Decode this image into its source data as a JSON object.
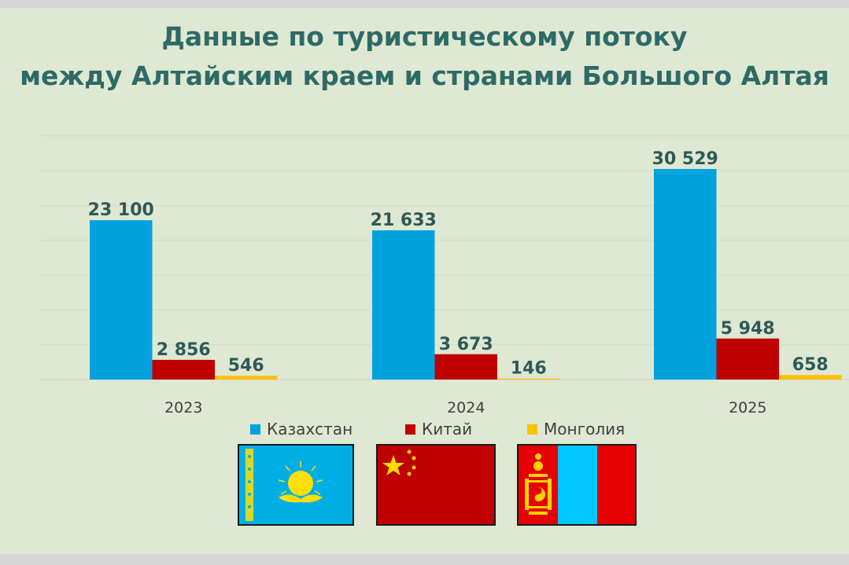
{
  "title": {
    "line1": "Данные по туристическому потоку",
    "line2": "между Алтайским краем и странами Большого Алтая"
  },
  "colors": {
    "title": "#2e6a66",
    "background": "#dfe8d2",
    "kazakhstan": "#00a2dd",
    "china": "#c00000",
    "mongolia": "#ffc000",
    "data_label": "#2e5a58"
  },
  "flags": [
    "kazakhstan-flag-icon",
    "china-flag-icon",
    "mongolia-flag-icon"
  ],
  "chart_data": {
    "type": "bar",
    "categories": [
      "2023",
      "2024",
      "2025"
    ],
    "series": [
      {
        "name": "Казахстан",
        "values": [
          23100,
          21633,
          30529
        ],
        "labels": [
          "23 100",
          "21 633",
          "30 529"
        ],
        "color": "#00a2dd"
      },
      {
        "name": "Китай",
        "values": [
          2856,
          3673,
          5948
        ],
        "labels": [
          "2 856",
          "3 673",
          "5 948"
        ],
        "color": "#c00000"
      },
      {
        "name": "Монголия",
        "values": [
          546,
          146,
          658
        ],
        "labels": [
          "546",
          "146",
          "658"
        ],
        "color": "#ffc000"
      }
    ],
    "title": "Данные по туристическому потоку между Алтайским краем и странами Большого Алтая",
    "xlabel": "",
    "ylabel": "",
    "grid": true,
    "legend": "bottom"
  }
}
